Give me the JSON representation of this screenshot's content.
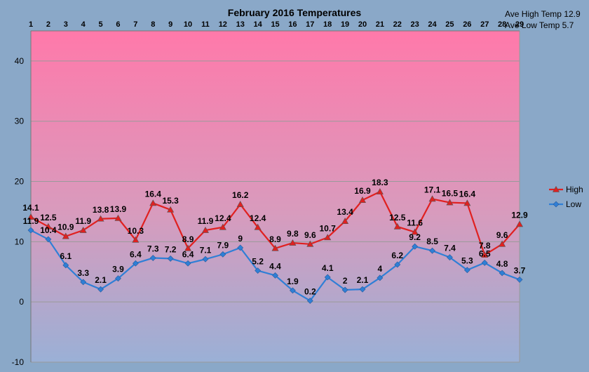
{
  "chart_data": {
    "type": "line",
    "title": "February 2016 Temperatures",
    "annotations": [
      "Ave High Temp 12.9",
      "Ave Low Temp 5.7"
    ],
    "x": [
      1,
      2,
      3,
      4,
      5,
      6,
      7,
      8,
      9,
      10,
      11,
      12,
      13,
      14,
      15,
      16,
      17,
      18,
      19,
      20,
      21,
      22,
      23,
      24,
      25,
      26,
      27,
      28,
      29
    ],
    "x_axis_position": "top",
    "ylim": [
      -10,
      45
    ],
    "y_ticks": [
      -10,
      0,
      10,
      20,
      30,
      40
    ],
    "grid": "horizontal",
    "legend_position": "right",
    "series": [
      {
        "name": "High",
        "color": "#e02020",
        "marker": "triangle",
        "values": [
          14.1,
          12.5,
          10.9,
          11.9,
          13.8,
          13.9,
          10.3,
          16.4,
          15.3,
          8.9,
          11.9,
          12.4,
          16.2,
          12.4,
          8.9,
          9.8,
          9.6,
          10.7,
          13.4,
          16.9,
          18.3,
          12.5,
          11.6,
          17.1,
          16.5,
          16.4,
          7.8,
          9.6,
          12.9
        ]
      },
      {
        "name": "Low",
        "color": "#2f7fd6",
        "marker": "diamond",
        "values": [
          11.9,
          10.4,
          6.1,
          3.3,
          2.1,
          3.9,
          6.4,
          7.3,
          7.2,
          6.4,
          7.1,
          7.9,
          9,
          5.2,
          4.4,
          1.9,
          0.2,
          4.1,
          2,
          2.1,
          4,
          6.2,
          9.2,
          8.5,
          7.4,
          5.3,
          6.5,
          4.8,
          3.7
        ]
      }
    ]
  }
}
